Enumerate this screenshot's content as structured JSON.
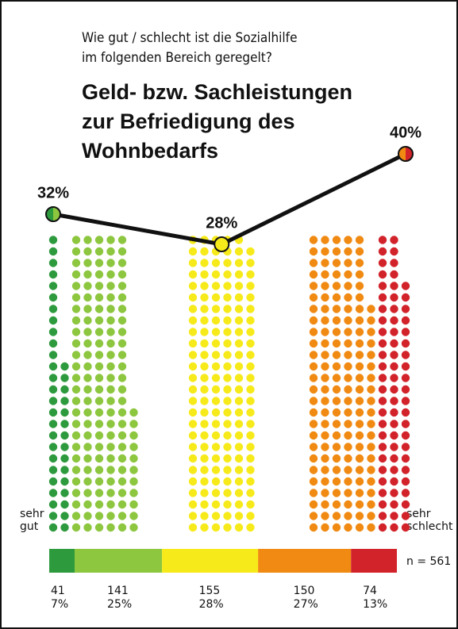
{
  "chart_data": {
    "type": "waffle",
    "subtitle": [
      "Wie gut / schlecht ist die Sozialhilfe",
      "im folgenden Bereich geregelt?"
    ],
    "title": [
      "Geld- bzw. Sachleistungen",
      "zur Befriedigung des",
      "Wohnbedarfs"
    ],
    "scale_labels": {
      "low": [
        "sehr",
        "gut"
      ],
      "high": [
        "sehr",
        "schlecht"
      ]
    },
    "counts": [
      41,
      141,
      155,
      150,
      74
    ],
    "percents": [
      7,
      25,
      28,
      27,
      13
    ],
    "percent_labels": [
      "7%",
      "25%",
      "28%",
      "27%",
      "13%"
    ],
    "colors": [
      "#2e9a3e",
      "#8dc63f",
      "#f7ea1a",
      "#f08a12",
      "#d2232a"
    ],
    "groups": {
      "values": [
        32,
        28,
        40
      ],
      "value_labels": [
        "32%",
        "28%",
        "40%"
      ],
      "members": [
        [
          0,
          1
        ],
        [
          2
        ],
        [
          3,
          4
        ]
      ]
    },
    "sample_size": {
      "value": 561,
      "label": "n = 561"
    }
  }
}
